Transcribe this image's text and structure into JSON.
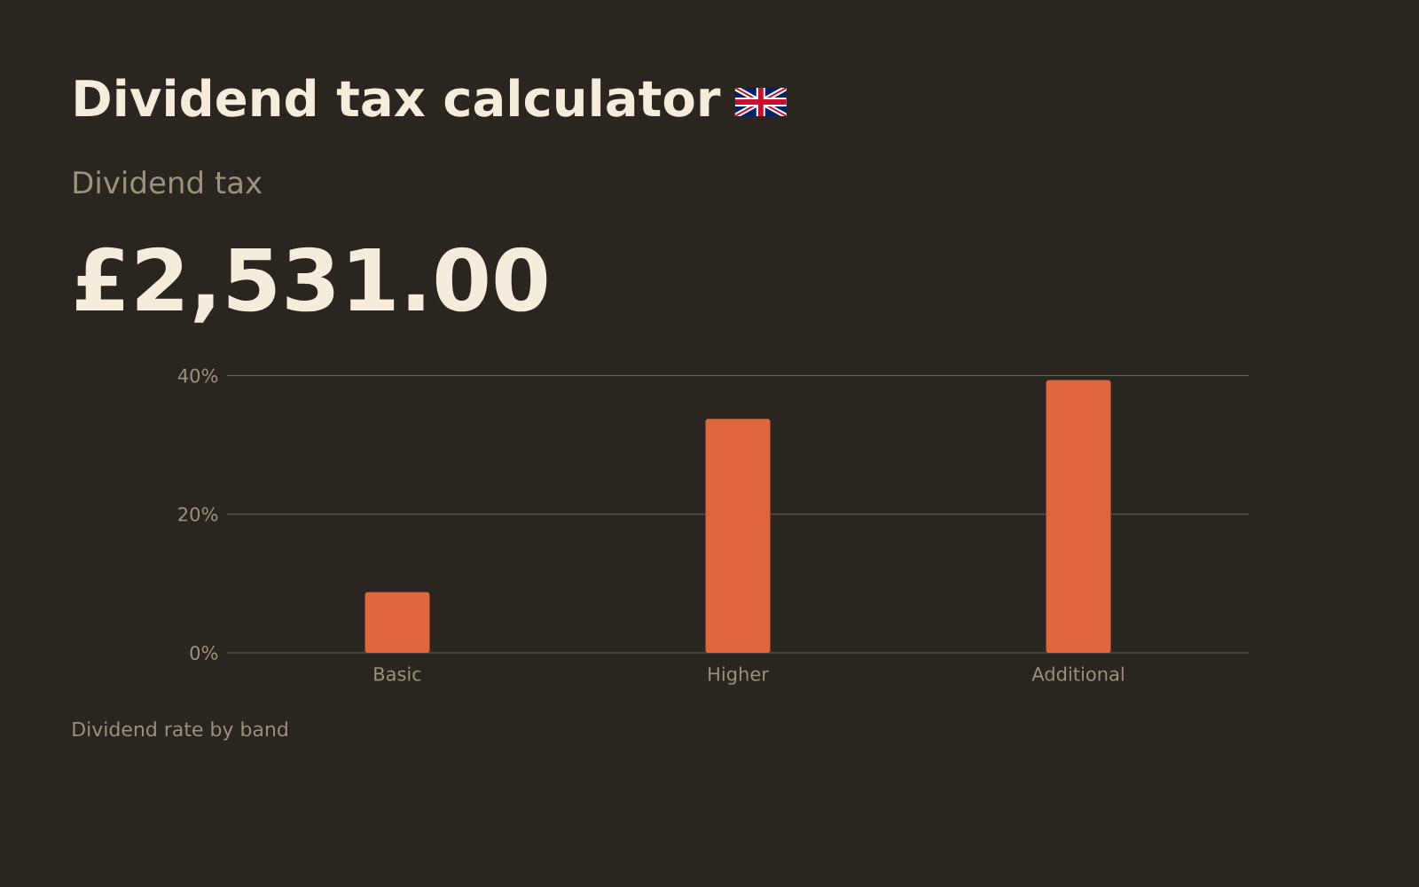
{
  "chart_data": {
    "type": "bar",
    "title": "Dividend tax calculator",
    "subtitle": "Dividend tax",
    "annotations": [
      "£2,531.00",
      "Dividend rate by band"
    ],
    "categories": [
      "Basic",
      "Higher",
      "Additional"
    ],
    "values": [
      8.75,
      33.75,
      39.35
    ],
    "color": "#e0673d",
    "ylim": [
      0,
      40
    ],
    "yticks": [
      {
        "value": 0,
        "label": "0%"
      },
      {
        "value": 20,
        "label": "20%"
      },
      {
        "value": 40,
        "label": "40%"
      }
    ],
    "grid": "y"
  }
}
